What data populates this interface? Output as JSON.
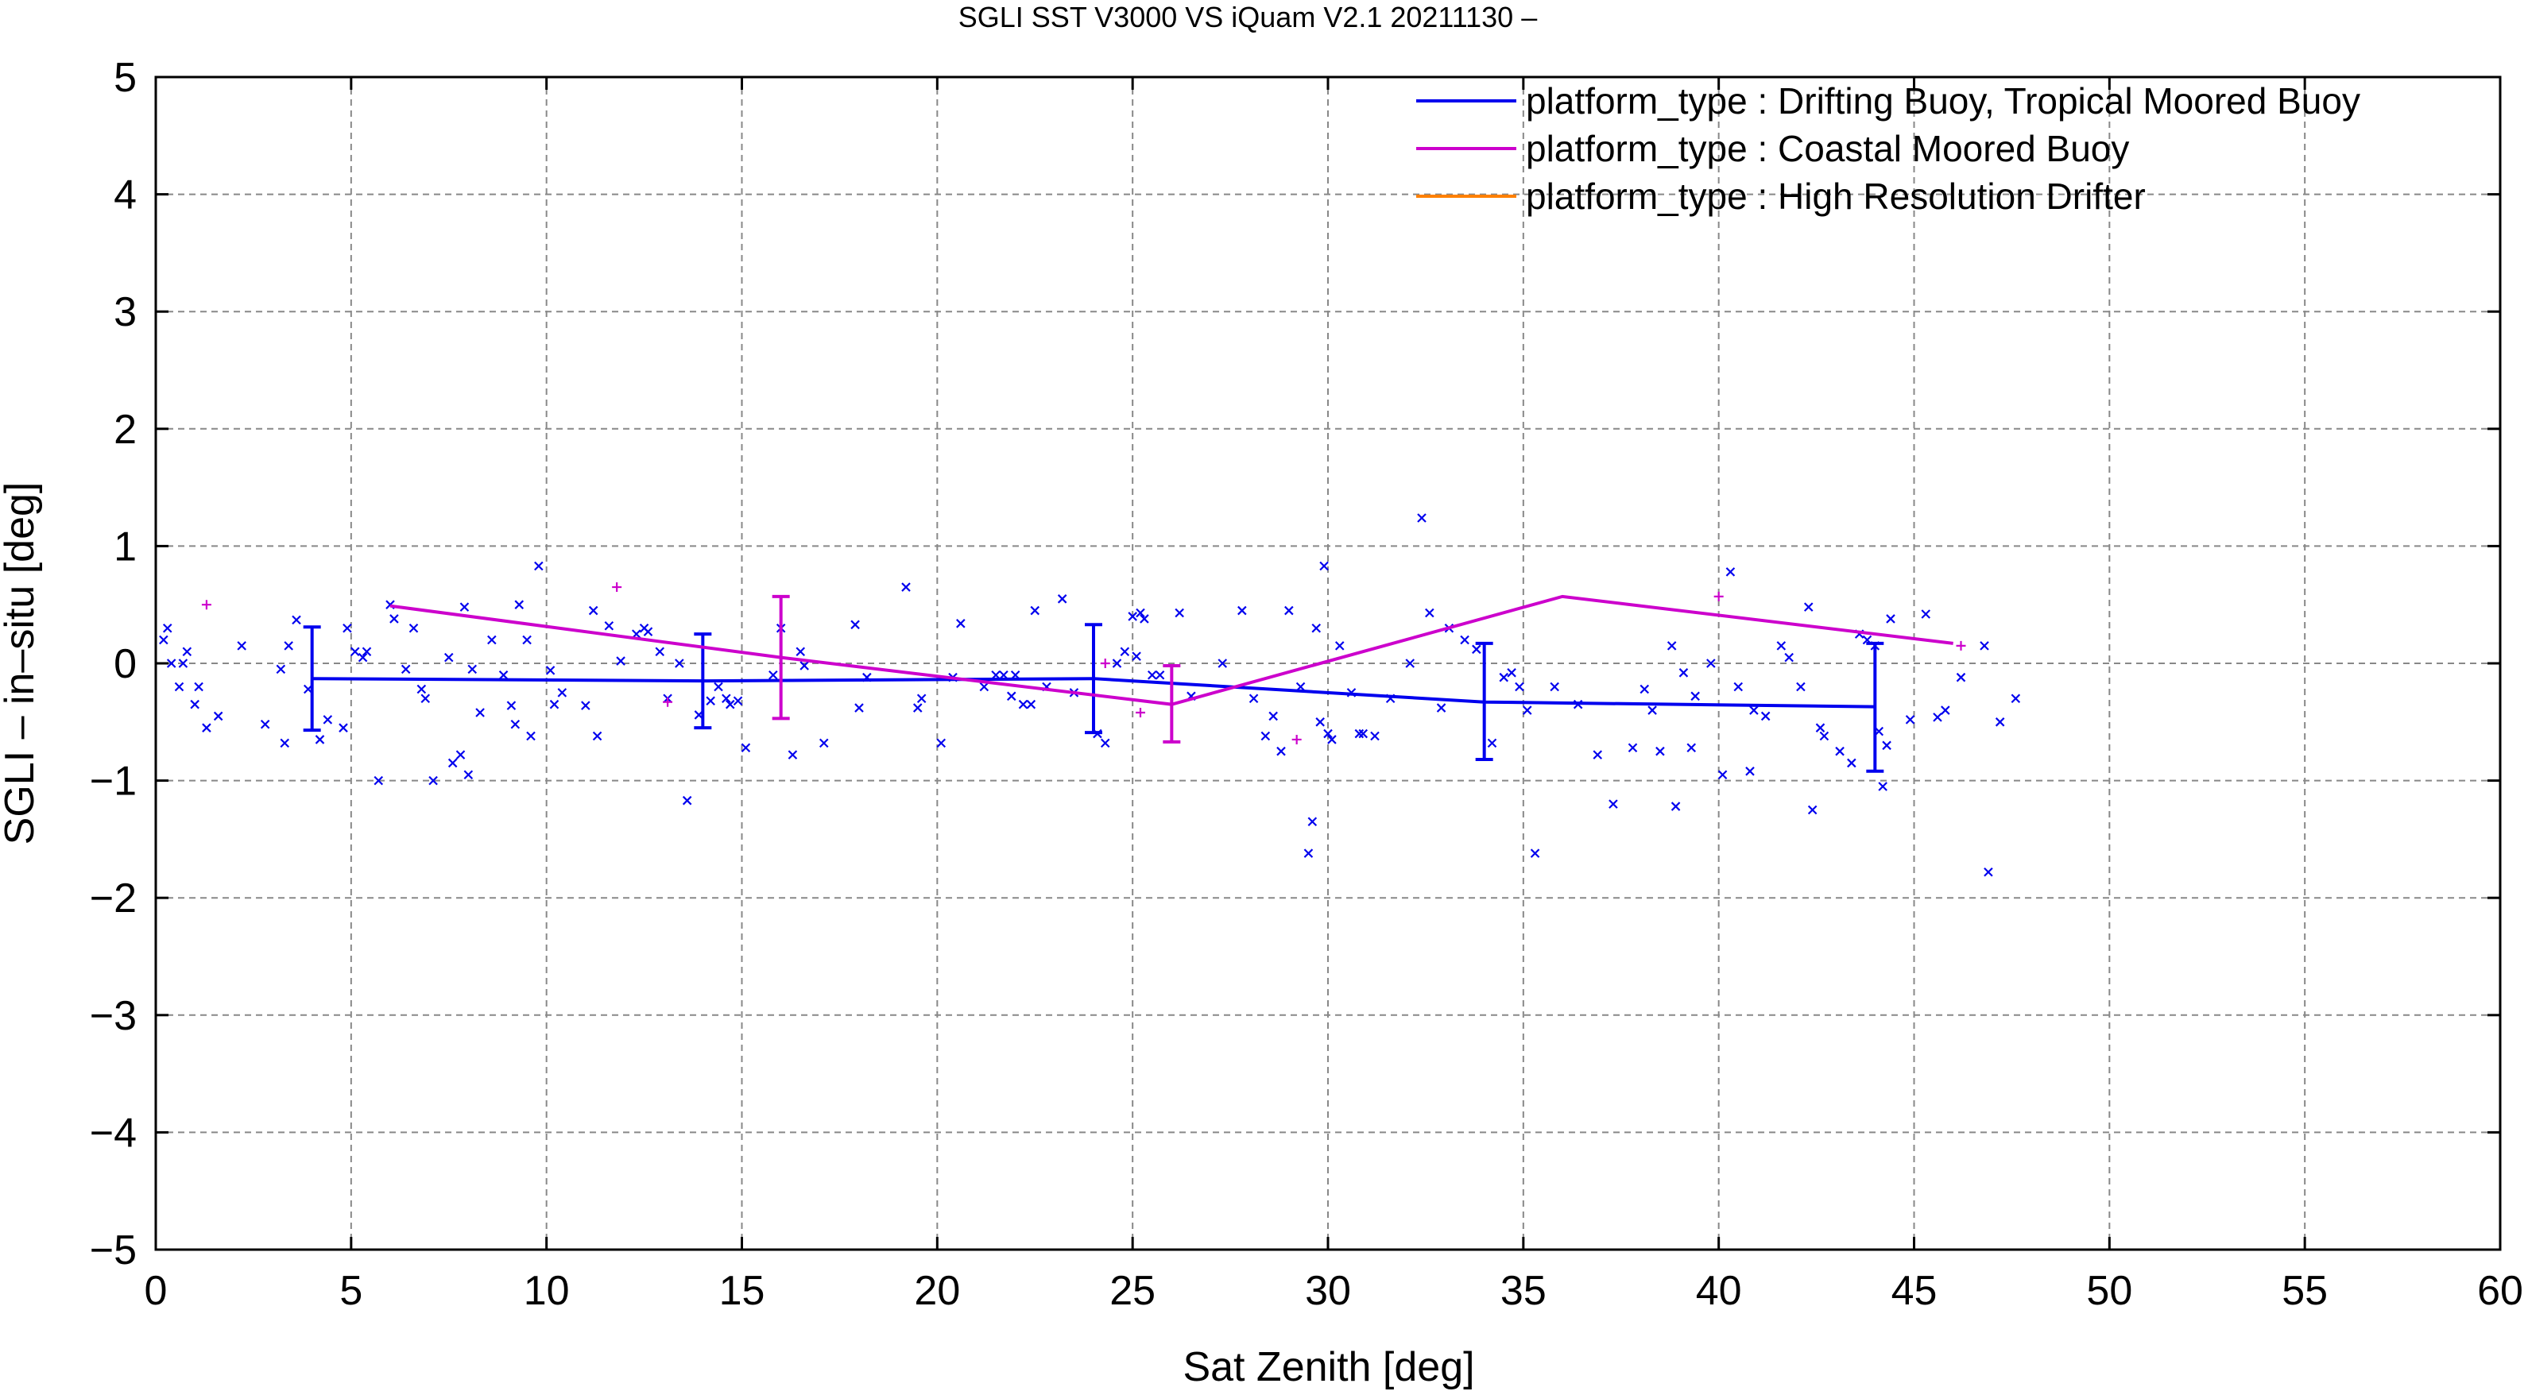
{
  "chart_data": {
    "type": "scatter",
    "title": "SGLI SST V3000 VS iQuam V2.1 20211130 –",
    "xlabel": "Sat Zenith [deg]",
    "ylabel": "SGLI – in–situ [deg]",
    "xlim": [
      0,
      60
    ],
    "ylim": [
      -5,
      5
    ],
    "xticks": [
      "0",
      "5",
      "10",
      "15",
      "20",
      "25",
      "30",
      "35",
      "40",
      "45",
      "50",
      "55",
      "60"
    ],
    "yticks": [
      "5",
      "4",
      "3",
      "2",
      "1",
      "0",
      "−1",
      "−2",
      "−3",
      "−4",
      "−5"
    ],
    "grid": true,
    "legend_position": "top-right",
    "colors": {
      "drifting": "#0000ee",
      "coastal": "#cc00cc",
      "hrd": "#ff8000"
    },
    "series": [
      {
        "name": "platform_type : Drifting Buoy, Tropical Moored Buoy",
        "color": "#0000ee",
        "mean_line": {
          "x": [
            4,
            14,
            24,
            34,
            44
          ],
          "y": [
            -0.13,
            -0.15,
            -0.13,
            -0.33,
            -0.37
          ],
          "err_low": [
            -0.57,
            -0.55,
            -0.59,
            -0.82,
            -0.92
          ],
          "err_high": [
            0.31,
            0.25,
            0.33,
            0.17,
            0.17
          ]
        },
        "points": [
          [
            0.2,
            0.2
          ],
          [
            0.3,
            0.3
          ],
          [
            0.4,
            0.0
          ],
          [
            0.6,
            -0.2
          ],
          [
            0.7,
            0.0
          ],
          [
            0.8,
            0.1
          ],
          [
            1.1,
            -0.2
          ],
          [
            1.0,
            -0.35
          ],
          [
            1.3,
            -0.55
          ],
          [
            1.6,
            -0.45
          ],
          [
            2.2,
            0.15
          ],
          [
            2.8,
            -0.52
          ],
          [
            3.2,
            -0.05
          ],
          [
            3.3,
            -0.68
          ],
          [
            3.4,
            0.15
          ],
          [
            3.6,
            0.37
          ],
          [
            3.9,
            -0.22
          ],
          [
            4.2,
            -0.65
          ],
          [
            4.4,
            -0.48
          ],
          [
            4.8,
            -0.55
          ],
          [
            4.9,
            0.3
          ],
          [
            5.1,
            0.1
          ],
          [
            5.3,
            0.05
          ],
          [
            5.4,
            0.1
          ],
          [
            5.7,
            -1.0
          ],
          [
            6.0,
            0.5
          ],
          [
            6.1,
            0.38
          ],
          [
            6.4,
            -0.05
          ],
          [
            6.6,
            0.3
          ],
          [
            6.8,
            -0.22
          ],
          [
            6.9,
            -0.3
          ],
          [
            7.1,
            -1.0
          ],
          [
            7.5,
            0.05
          ],
          [
            7.6,
            -0.85
          ],
          [
            7.8,
            -0.78
          ],
          [
            7.9,
            0.48
          ],
          [
            8.0,
            -0.95
          ],
          [
            8.1,
            -0.05
          ],
          [
            8.3,
            -0.42
          ],
          [
            8.6,
            0.2
          ],
          [
            8.9,
            -0.1
          ],
          [
            9.1,
            -0.36
          ],
          [
            9.3,
            0.5
          ],
          [
            9.2,
            -0.52
          ],
          [
            9.5,
            0.2
          ],
          [
            9.6,
            -0.62
          ],
          [
            9.8,
            0.83
          ],
          [
            10.1,
            -0.06
          ],
          [
            10.2,
            -0.35
          ],
          [
            10.4,
            -0.25
          ],
          [
            11.0,
            -0.36
          ],
          [
            11.2,
            0.45
          ],
          [
            11.3,
            -0.62
          ],
          [
            11.6,
            0.32
          ],
          [
            11.9,
            0.02
          ],
          [
            12.3,
            0.25
          ],
          [
            12.5,
            0.3
          ],
          [
            12.6,
            0.27
          ],
          [
            12.9,
            0.1
          ],
          [
            13.1,
            -0.3
          ],
          [
            13.4,
            0.0
          ],
          [
            13.6,
            -1.17
          ],
          [
            13.9,
            -0.44
          ],
          [
            14.2,
            -0.32
          ],
          [
            14.4,
            -0.2
          ],
          [
            14.6,
            -0.3
          ],
          [
            14.7,
            -0.35
          ],
          [
            14.9,
            -0.32
          ],
          [
            15.1,
            -0.72
          ],
          [
            15.8,
            -0.1
          ],
          [
            16.0,
            0.3
          ],
          [
            16.3,
            -0.78
          ],
          [
            16.5,
            0.1
          ],
          [
            16.6,
            -0.02
          ],
          [
            17.1,
            -0.68
          ],
          [
            17.9,
            0.33
          ],
          [
            18.0,
            -0.38
          ],
          [
            18.2,
            -0.12
          ],
          [
            19.2,
            0.65
          ],
          [
            19.5,
            -0.38
          ],
          [
            19.6,
            -0.3
          ],
          [
            20.1,
            -0.68
          ],
          [
            20.4,
            -0.12
          ],
          [
            20.6,
            0.34
          ],
          [
            21.2,
            -0.2
          ],
          [
            21.5,
            -0.1
          ],
          [
            21.7,
            -0.1
          ],
          [
            21.9,
            -0.28
          ],
          [
            22.0,
            -0.1
          ],
          [
            22.2,
            -0.35
          ],
          [
            22.4,
            -0.35
          ],
          [
            22.5,
            0.45
          ],
          [
            22.8,
            -0.2
          ],
          [
            23.2,
            0.55
          ],
          [
            23.5,
            -0.25
          ],
          [
            24.1,
            -0.6
          ],
          [
            24.3,
            -0.68
          ],
          [
            24.6,
            0.0
          ],
          [
            24.8,
            0.1
          ],
          [
            25.0,
            0.4
          ],
          [
            25.1,
            0.06
          ],
          [
            25.2,
            0.43
          ],
          [
            25.3,
            0.38
          ],
          [
            25.5,
            -0.1
          ],
          [
            25.7,
            -0.1
          ],
          [
            26.2,
            0.43
          ],
          [
            26.5,
            -0.28
          ],
          [
            27.3,
            0.0
          ],
          [
            27.8,
            0.45
          ],
          [
            28.1,
            -0.3
          ],
          [
            28.4,
            -0.62
          ],
          [
            28.6,
            -0.45
          ],
          [
            28.8,
            -0.75
          ],
          [
            29.0,
            0.45
          ],
          [
            29.3,
            -0.2
          ],
          [
            29.5,
            -1.62
          ],
          [
            29.6,
            -1.35
          ],
          [
            29.7,
            0.3
          ],
          [
            29.8,
            -0.5
          ],
          [
            29.9,
            0.83
          ],
          [
            30.0,
            -0.6
          ],
          [
            30.1,
            -0.65
          ],
          [
            30.3,
            0.15
          ],
          [
            30.6,
            -0.25
          ],
          [
            30.8,
            -0.6
          ],
          [
            30.9,
            -0.6
          ],
          [
            31.2,
            -0.62
          ],
          [
            31.6,
            -0.3
          ],
          [
            32.1,
            0.0
          ],
          [
            32.4,
            1.24
          ],
          [
            32.6,
            0.43
          ],
          [
            32.9,
            -0.38
          ],
          [
            33.1,
            0.3
          ],
          [
            33.5,
            0.2
          ],
          [
            33.8,
            0.12
          ],
          [
            34.2,
            -0.68
          ],
          [
            34.5,
            -0.12
          ],
          [
            34.7,
            -0.08
          ],
          [
            34.9,
            -0.2
          ],
          [
            35.1,
            -0.4
          ],
          [
            35.3,
            -1.62
          ],
          [
            35.8,
            -0.2
          ],
          [
            36.4,
            -0.35
          ],
          [
            36.9,
            -0.78
          ],
          [
            37.3,
            -1.2
          ],
          [
            37.8,
            -0.72
          ],
          [
            38.1,
            -0.22
          ],
          [
            38.3,
            -0.4
          ],
          [
            38.5,
            -0.75
          ],
          [
            38.8,
            0.15
          ],
          [
            38.9,
            -1.22
          ],
          [
            39.1,
            -0.08
          ],
          [
            39.3,
            -0.72
          ],
          [
            39.4,
            -0.28
          ],
          [
            39.8,
            0.0
          ],
          [
            40.1,
            -0.95
          ],
          [
            40.3,
            0.78
          ],
          [
            40.5,
            -0.2
          ],
          [
            40.8,
            -0.92
          ],
          [
            40.9,
            -0.4
          ],
          [
            41.2,
            -0.45
          ],
          [
            41.6,
            0.15
          ],
          [
            41.8,
            0.05
          ],
          [
            42.1,
            -0.2
          ],
          [
            42.3,
            0.48
          ],
          [
            42.4,
            -1.25
          ],
          [
            42.6,
            -0.55
          ],
          [
            42.7,
            -0.62
          ],
          [
            43.1,
            -0.75
          ],
          [
            43.4,
            -0.85
          ],
          [
            43.6,
            0.25
          ],
          [
            43.8,
            0.2
          ],
          [
            44.0,
            0.15
          ],
          [
            44.1,
            -0.58
          ],
          [
            44.2,
            -1.05
          ],
          [
            44.3,
            -0.7
          ],
          [
            44.4,
            0.38
          ],
          [
            44.9,
            -0.48
          ],
          [
            45.3,
            0.42
          ],
          [
            45.6,
            -0.46
          ],
          [
            45.8,
            -0.4
          ],
          [
            46.2,
            -0.12
          ],
          [
            46.8,
            0.15
          ],
          [
            46.9,
            -1.78
          ],
          [
            47.2,
            -0.5
          ],
          [
            47.6,
            -0.3
          ]
        ]
      },
      {
        "name": "platform_type : Coastal Moored Buoy",
        "color": "#cc00cc",
        "mean_line": {
          "x": [
            6,
            16,
            26,
            36,
            46
          ],
          "y": [
            0.49,
            0.05,
            -0.35,
            0.57,
            0.17
          ],
          "err_x": [
            16,
            26
          ],
          "err_low": [
            -0.47,
            -0.67
          ],
          "err_high": [
            0.57,
            -0.02
          ]
        },
        "points": [
          [
            1.3,
            0.5
          ],
          [
            11.8,
            0.65
          ],
          [
            13.1,
            -0.33
          ],
          [
            24.3,
            0.0
          ],
          [
            25.2,
            -0.42
          ],
          [
            29.2,
            -0.65
          ],
          [
            40.0,
            0.57
          ],
          [
            46.2,
            0.15
          ]
        ]
      },
      {
        "name": "platform_type : High Resolution Drifter",
        "color": "#ff8000",
        "mean_line": {
          "x": [],
          "y": []
        },
        "points": []
      }
    ]
  }
}
